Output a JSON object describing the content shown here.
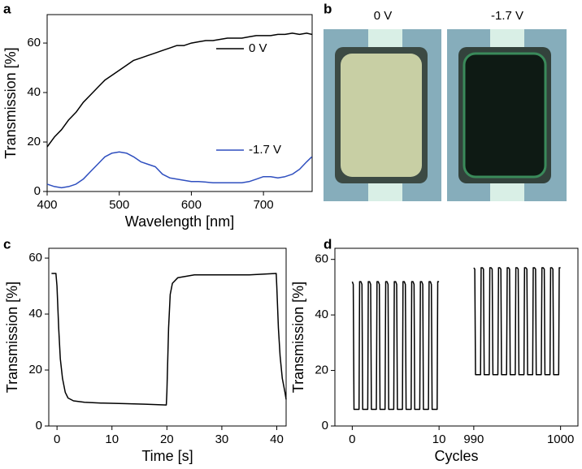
{
  "chart_data": [
    {
      "panel": "a",
      "type": "line",
      "xlabel": "Wavelength [nm]",
      "ylabel": "Transmission [%]",
      "xlim": [
        400,
        767.5
      ],
      "xticks": [
        400,
        500,
        600,
        700
      ],
      "ylim": [
        0,
        71.5
      ],
      "yticks": [
        0,
        20,
        40,
        60
      ],
      "legend": "right",
      "x": [
        400,
        410,
        420,
        430,
        440,
        450,
        460,
        470,
        480,
        490,
        500,
        510,
        520,
        530,
        540,
        550,
        560,
        570,
        580,
        590,
        600,
        610,
        620,
        630,
        640,
        650,
        660,
        670,
        680,
        690,
        700,
        710,
        720,
        730,
        740,
        750,
        760,
        767
      ],
      "series": [
        {
          "name": "0 V",
          "color": "#000000",
          "values": [
            18,
            22,
            25,
            29,
            32,
            36,
            39,
            42,
            45,
            47,
            49,
            51,
            53,
            54,
            55,
            56,
            57,
            58,
            59,
            59,
            60,
            60.5,
            61,
            61,
            61.5,
            62,
            62,
            62,
            62.5,
            63,
            63,
            63,
            63.5,
            63.5,
            64,
            63.5,
            64,
            63.5
          ]
        },
        {
          "name": "-1.7 V",
          "color": "#2f4fbf",
          "values": [
            3,
            2,
            1.5,
            2,
            3,
            5,
            8,
            11,
            14,
            15.5,
            16,
            15.5,
            14,
            12,
            11,
            10,
            7,
            5.5,
            5,
            4.5,
            4,
            4,
            3.8,
            3.5,
            3.5,
            3.5,
            3.5,
            3.5,
            4,
            5,
            6,
            6,
            5.5,
            6,
            7,
            9,
            12,
            14
          ]
        }
      ]
    },
    {
      "panel": "c",
      "type": "line",
      "xlabel": "Time [s]",
      "ylabel": "Transmission [%]",
      "xlim": [
        -1.5,
        41.7
      ],
      "xticks": [
        0,
        10,
        20,
        30,
        40
      ],
      "ylim": [
        0,
        63.5
      ],
      "yticks": [
        0,
        20,
        40,
        60
      ],
      "x": [
        -1,
        -0.2,
        0,
        0.3,
        0.6,
        1,
        1.5,
        2,
        3,
        5,
        8,
        12,
        16,
        19.9,
        20,
        20.3,
        20.6,
        21,
        22,
        25,
        30,
        35,
        39.9,
        40,
        40.3,
        40.6,
        41,
        41.5,
        41.7
      ],
      "series": [
        {
          "color": "#000000",
          "values": [
            54.5,
            54.5,
            50,
            35,
            24,
            17,
            12,
            10,
            9,
            8.5,
            8.2,
            8,
            7.8,
            7.5,
            12,
            35,
            47,
            51,
            53,
            54,
            54,
            54,
            54.5,
            50,
            35,
            25,
            17,
            12,
            9.5
          ]
        }
      ]
    },
    {
      "panel": "d",
      "type": "line",
      "xlabel": "Cycles",
      "ylabel": "Transmission [%]",
      "xlim_segments": [
        [
          -2,
          12
        ],
        [
          988,
          1002
        ]
      ],
      "xticks": [
        0,
        10,
        990,
        1000
      ],
      "ylim": [
        0,
        64
      ],
      "yticks": [
        0,
        20,
        40,
        60
      ],
      "series": [
        {
          "color": "#000000",
          "segment": 0,
          "x": [
            0,
            0.12,
            0.2,
            0.78,
            0.85,
            1,
            1.12,
            1.2,
            1.78,
            1.85,
            2,
            2.12,
            2.2,
            2.78,
            2.85,
            3,
            3.12,
            3.2,
            3.78,
            3.85,
            4,
            4.12,
            4.2,
            4.78,
            4.85,
            5,
            5.12,
            5.2,
            5.78,
            5.85,
            6,
            6.12,
            6.2,
            6.78,
            6.85,
            7,
            7.12,
            7.2,
            7.78,
            7.85,
            8,
            8.12,
            8.2,
            8.78,
            8.85,
            9,
            9.12,
            9.2,
            9.78,
            9.85,
            10
          ],
          "values": [
            52,
            51,
            6,
            6,
            52,
            52,
            51,
            6,
            6,
            52,
            52,
            51,
            6,
            6,
            52,
            52,
            51,
            6,
            6,
            52,
            52,
            51,
            6,
            6,
            52,
            52,
            51,
            6,
            6,
            52,
            52,
            51,
            6,
            6,
            52,
            52,
            51,
            6,
            6,
            52,
            52,
            51,
            6,
            6,
            52,
            52,
            51,
            6,
            6,
            52,
            52
          ]
        },
        {
          "color": "#000000",
          "segment": 1,
          "x": [
            990,
            990.12,
            990.2,
            990.78,
            990.85,
            991,
            991.12,
            991.2,
            991.78,
            991.85,
            992,
            992.12,
            992.2,
            992.78,
            992.85,
            993,
            993.12,
            993.2,
            993.78,
            993.85,
            994,
            994.12,
            994.2,
            994.78,
            994.85,
            995,
            995.12,
            995.2,
            995.78,
            995.85,
            996,
            996.12,
            996.2,
            996.78,
            996.85,
            997,
            997.12,
            997.2,
            997.78,
            997.85,
            998,
            998.12,
            998.2,
            998.78,
            998.85,
            999,
            999.12,
            999.2,
            999.78,
            999.85,
            1000
          ],
          "values": [
            57,
            56.5,
            18.5,
            18.5,
            57,
            57,
            56.5,
            18.5,
            18.5,
            57,
            57,
            56.5,
            18.5,
            18.5,
            57,
            57,
            56.5,
            18.5,
            18.5,
            57,
            57,
            56.5,
            18.5,
            18.5,
            57,
            57,
            56.5,
            18.5,
            18.5,
            57,
            57,
            56.5,
            18.5,
            18.5,
            57,
            57,
            56.5,
            18.5,
            18.5,
            57,
            57,
            56.5,
            18.5,
            18.5,
            57,
            57,
            56.5,
            18.5,
            18.5,
            57,
            57
          ]
        }
      ]
    }
  ],
  "photos": {
    "panel": "b",
    "captions": [
      "0 V",
      "-1.7 V"
    ]
  }
}
